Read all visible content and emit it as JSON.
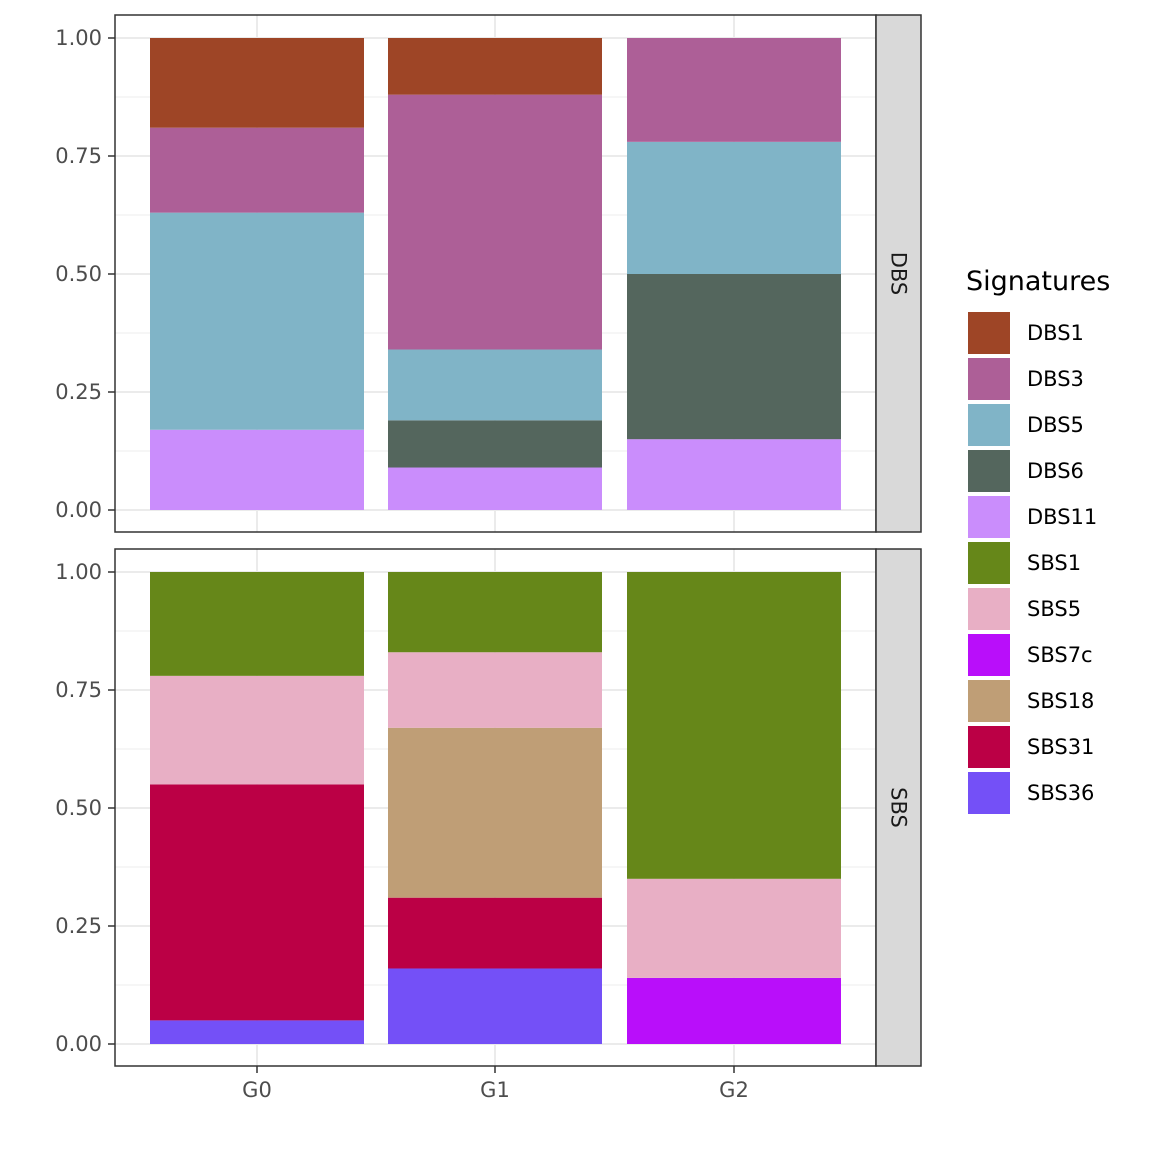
{
  "chart_data": {
    "type": "bar",
    "stacked": true,
    "categories": [
      "G0",
      "G1",
      "G2"
    ],
    "ylim": [
      0,
      1
    ],
    "y_ticks": [
      "0.00",
      "0.25",
      "0.50",
      "0.75",
      "1.00"
    ],
    "y_tick_values": [
      0,
      0.25,
      0.5,
      0.75,
      1
    ],
    "grid": true,
    "facets": [
      {
        "label": "DBS",
        "series": [
          {
            "name": "DBS11",
            "values": [
              0.17,
              0.09,
              0.15
            ]
          },
          {
            "name": "DBS6",
            "values": [
              0.0,
              0.1,
              0.35
            ]
          },
          {
            "name": "DBS5",
            "values": [
              0.46,
              0.15,
              0.28
            ]
          },
          {
            "name": "DBS3",
            "values": [
              0.18,
              0.54,
              0.22
            ]
          },
          {
            "name": "DBS1",
            "values": [
              0.19,
              0.12,
              0.0
            ]
          }
        ]
      },
      {
        "label": "SBS",
        "series": [
          {
            "name": "SBS36",
            "values": [
              0.05,
              0.16,
              0.0
            ]
          },
          {
            "name": "SBS7c",
            "values": [
              0.0,
              0.0,
              0.14
            ]
          },
          {
            "name": "SBS31",
            "values": [
              0.5,
              0.15,
              0.0
            ]
          },
          {
            "name": "SBS18",
            "values": [
              0.0,
              0.36,
              0.0
            ]
          },
          {
            "name": "SBS5",
            "values": [
              0.23,
              0.16,
              0.21
            ]
          },
          {
            "name": "SBS1",
            "values": [
              0.22,
              0.17,
              0.65
            ]
          }
        ]
      }
    ],
    "legend": {
      "title": "Signatures",
      "position": "right",
      "items": [
        {
          "label": "DBS1",
          "color": "#9E4526"
        },
        {
          "label": "DBS3",
          "color": "#AD5F97"
        },
        {
          "label": "DBS5",
          "color": "#80B4C7"
        },
        {
          "label": "DBS6",
          "color": "#54665D"
        },
        {
          "label": "DBS11",
          "color": "#CA8DFC"
        },
        {
          "label": "SBS1",
          "color": "#668719"
        },
        {
          "label": "SBS5",
          "color": "#E8AFC5"
        },
        {
          "label": "SBS7c",
          "color": "#B90EFA"
        },
        {
          "label": "SBS18",
          "color": "#BF9E76"
        },
        {
          "label": "SBS31",
          "color": "#BB0045"
        },
        {
          "label": "SBS36",
          "color": "#7450F7"
        }
      ]
    }
  }
}
